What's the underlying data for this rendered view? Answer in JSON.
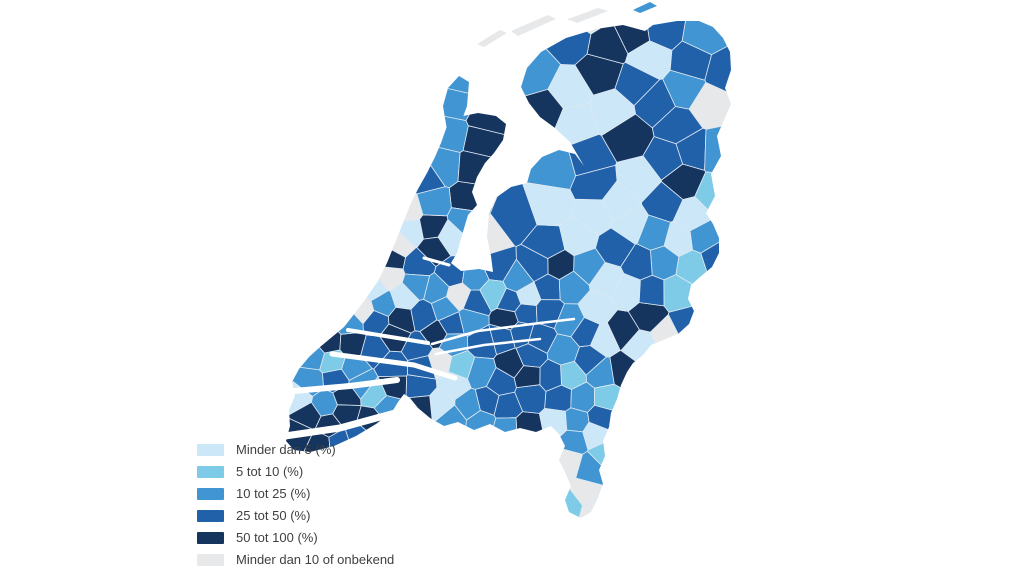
{
  "page": {
    "background": "#ffffff"
  },
  "map": {
    "border_color": "#dde8f2",
    "water_color": "#ffffff"
  },
  "legend": {
    "items": [
      {
        "label": "Minder dan 5 (%)",
        "color": "#cbe7f8"
      },
      {
        "label": "5 tot 10 (%)",
        "color": "#7dcbe6"
      },
      {
        "label": "10 tot 25 (%)",
        "color": "#4195d2"
      },
      {
        "label": "25 tot 50 (%)",
        "color": "#2161aa"
      },
      {
        "label": "50 tot 100 (%)",
        "color": "#16355e"
      },
      {
        "label": "Minder dan 10 of onbekend",
        "color": "#e7e8ea"
      }
    ]
  },
  "chart_data": {
    "type": "choropleth",
    "classes": [
      {
        "label": "Minder dan 5 (%)",
        "color": "#cbe7f8"
      },
      {
        "label": "5 tot 10 (%)",
        "color": "#7dcbe6"
      },
      {
        "label": "10 tot 25 (%)",
        "color": "#4195d2"
      },
      {
        "label": "25 tot 50 (%)",
        "color": "#2161aa"
      },
      {
        "label": "50 tot 100 (%)",
        "color": "#16355e"
      },
      {
        "label": "Minder dan 10 of onbekend",
        "color": "#e7e8ea"
      }
    ],
    "legend_position": "bottom-left"
  }
}
